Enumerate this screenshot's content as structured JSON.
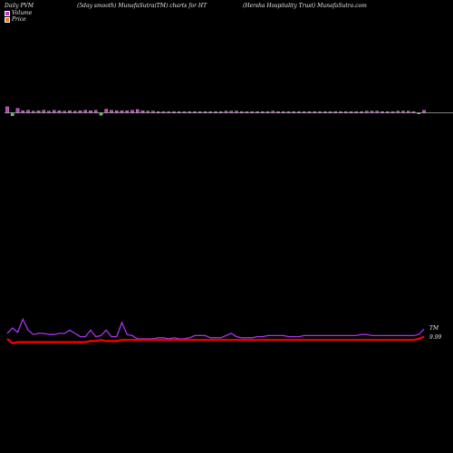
{
  "header": {
    "left": "Daily PVM",
    "middle": "(5day smooth) MunafaSutra(TM) charts for HT",
    "right": "(Hersha Hospitality Trust) MunafaSutra.com"
  },
  "legend": {
    "volume_label": "Volume",
    "volume_color": "#cc33cc",
    "price_label": "Price",
    "price_color": "#e67e22"
  },
  "colors": {
    "background": "#000000",
    "pvm_line": "#aa33ee",
    "price_line": "#ff0000",
    "volume_up": "#cc33cc",
    "volume_down": "#33cc33",
    "baseline": "#aaaaaa"
  },
  "chart_data": [
    {
      "type": "bar",
      "series": [
        {
          "values": [
            3.0,
            -1.5,
            2.2,
            1.0,
            1.2,
            0.8,
            1.0,
            1.2,
            0.8,
            1.2,
            1.0,
            0.8,
            1.0,
            0.8,
            1.0,
            1.2,
            1.0,
            1.2,
            -1.2,
            1.8,
            1.2,
            1.0,
            1.0,
            1.0,
            1.2,
            1.6,
            1.0,
            0.8,
            0.8,
            0.6,
            0.6,
            0.6,
            0.6,
            0.6,
            0.6,
            0.6,
            0.6,
            0.6,
            0.6,
            0.6,
            0.6,
            0.6,
            0.8,
            0.8,
            0.8,
            0.6,
            0.6,
            0.6,
            0.6,
            0.6,
            0.6,
            0.8,
            0.6,
            0.6,
            0.6,
            0.6,
            0.6,
            0.6,
            0.6,
            0.6,
            0.6,
            0.6,
            0.6,
            0.6,
            0.6,
            0.6,
            0.6,
            0.6,
            0.6,
            0.8,
            0.8,
            0.8,
            0.6,
            0.6,
            0.6,
            0.8,
            0.8,
            0.8,
            0.6,
            -0.5,
            1.2
          ]
        }
      ]
    },
    {
      "type": "line",
      "series": [
        {
          "values": [
            6.0,
            9.0,
            6.6,
            13.8,
            7.8,
            5.4,
            6.0,
            6.0,
            5.4,
            5.4,
            6.0,
            6.0,
            7.8,
            6.0,
            4.2,
            4.2,
            7.8,
            4.2,
            4.8,
            7.8,
            4.2,
            4.2,
            12.0,
            5.4,
            4.8,
            3.0,
            3.0,
            3.0,
            3.0,
            3.6,
            3.6,
            3.0,
            3.6,
            3.0,
            3.0,
            3.6,
            4.8,
            4.8,
            4.8,
            3.6,
            3.6,
            3.6,
            4.8,
            6.0,
            4.2,
            3.6,
            3.6,
            3.6,
            4.2,
            4.2,
            4.8,
            4.8,
            4.8,
            4.8,
            4.2,
            4.2,
            4.2,
            4.8,
            4.8,
            4.8,
            4.8,
            4.8,
            4.8,
            4.8,
            4.8,
            4.8,
            4.8,
            4.8,
            5.4,
            5.4,
            4.8,
            4.8,
            4.8,
            4.8,
            4.8,
            4.8,
            4.8,
            4.8,
            4.8,
            5.4,
            8.4
          ]
        },
        {
          "values": [
            3.0,
            0.6,
            1.2,
            1.2,
            1.2,
            1.2,
            1.2,
            1.2,
            1.2,
            1.2,
            1.2,
            1.2,
            1.2,
            1.2,
            1.2,
            1.2,
            1.8,
            1.8,
            2.4,
            1.8,
            1.8,
            1.8,
            2.4,
            2.4,
            2.4,
            2.4,
            2.4,
            2.4,
            2.4,
            2.4,
            2.4,
            2.4,
            2.4,
            2.4,
            2.4,
            2.4,
            2.4,
            2.4,
            2.4,
            2.4,
            2.4,
            2.4,
            2.4,
            2.4,
            2.4,
            2.4,
            2.4,
            2.4,
            2.4,
            2.4,
            2.4,
            2.4,
            2.4,
            2.4,
            2.4,
            2.4,
            2.4,
            2.4,
            2.4,
            2.4,
            2.4,
            2.4,
            2.4,
            2.4,
            2.4,
            2.4,
            2.4,
            2.4,
            2.4,
            2.4,
            2.4,
            2.4,
            2.4,
            2.4,
            2.4,
            2.4,
            2.4,
            2.4,
            2.4,
            3.0,
            4.2
          ]
        }
      ],
      "annotations": [
        "TM",
        "9.99"
      ]
    }
  ]
}
